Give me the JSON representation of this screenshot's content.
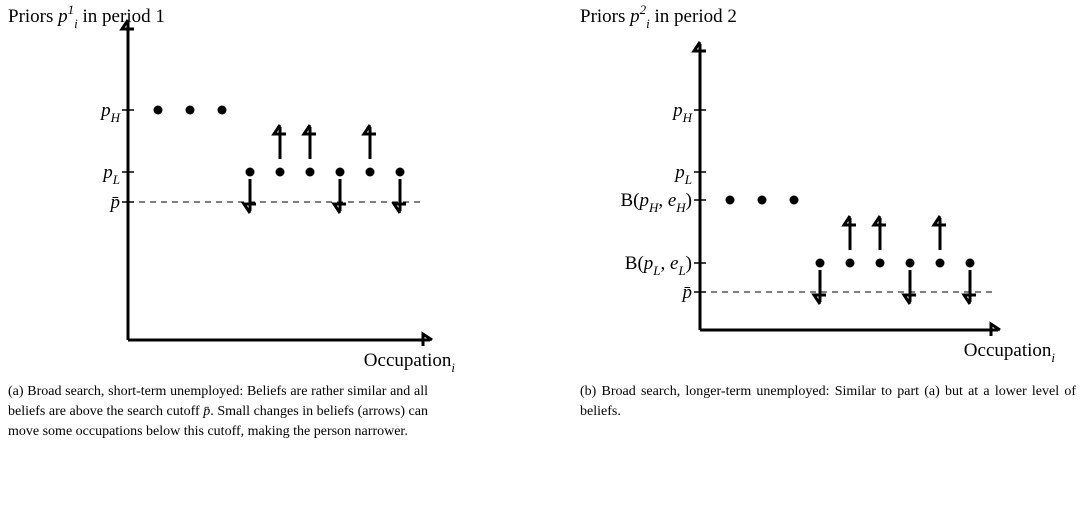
{
  "panels": [
    {
      "title": [
        {
          "text": "Priors ",
          "style": "r"
        },
        {
          "text": "p",
          "style": "i"
        },
        {
          "text": "1",
          "style": "sup"
        },
        {
          "text": "i",
          "style": "sub"
        },
        {
          "text": " in period 1",
          "style": "r"
        }
      ],
      "ticks": [
        [
          {
            "text": "p",
            "style": "i"
          },
          {
            "text": "H",
            "style": "sub"
          }
        ],
        [
          {
            "text": "p",
            "style": "i"
          },
          {
            "text": "L",
            "style": "sub"
          }
        ],
        [
          {
            "text": "p̄",
            "style": "i"
          }
        ]
      ],
      "xlabel": [
        {
          "text": "Occupation",
          "style": "r"
        },
        {
          "text": "i",
          "style": "sub"
        }
      ],
      "caption": [
        {
          "text": "(a) Broad search, short-term unemployed: Beliefs are rather similar and all beliefs are above the search cutoff ",
          "style": "r"
        },
        {
          "text": "p̄",
          "style": "i"
        },
        {
          "text": ". Small changes in beliefs (arrows) can move some occupations below this cutoff, making the person narrower.",
          "style": "r"
        }
      ]
    },
    {
      "title": [
        {
          "text": "Priors ",
          "style": "r"
        },
        {
          "text": "p",
          "style": "i"
        },
        {
          "text": "2",
          "style": "sup"
        },
        {
          "text": "i",
          "style": "sub"
        },
        {
          "text": " in period 2",
          "style": "r"
        }
      ],
      "ticks": [
        [
          {
            "text": "p",
            "style": "i"
          },
          {
            "text": "H",
            "style": "sub"
          }
        ],
        [
          {
            "text": "p",
            "style": "i"
          },
          {
            "text": "L",
            "style": "sub"
          }
        ],
        [
          {
            "text": "B(",
            "style": "r"
          },
          {
            "text": "p",
            "style": "i"
          },
          {
            "text": "H",
            "style": "sub"
          },
          {
            "text": ", ",
            "style": "r"
          },
          {
            "text": "e",
            "style": "i"
          },
          {
            "text": "H",
            "style": "sub"
          },
          {
            "text": ")",
            "style": "r"
          }
        ],
        [
          {
            "text": "B(",
            "style": "r"
          },
          {
            "text": "p",
            "style": "i"
          },
          {
            "text": "L",
            "style": "sub"
          },
          {
            "text": ", ",
            "style": "r"
          },
          {
            "text": "e",
            "style": "i"
          },
          {
            "text": "L",
            "style": "sub"
          },
          {
            "text": ")",
            "style": "r"
          }
        ],
        [
          {
            "text": "p̄",
            "style": "i"
          }
        ]
      ],
      "xlabel": [
        {
          "text": "Occupation",
          "style": "r"
        },
        {
          "text": "i",
          "style": "sub"
        }
      ],
      "caption": [
        {
          "text": "(b) Broad search, longer-term unemployed: Similar to part (a) but at a lower level of beliefs.",
          "style": "r"
        }
      ]
    }
  ]
}
